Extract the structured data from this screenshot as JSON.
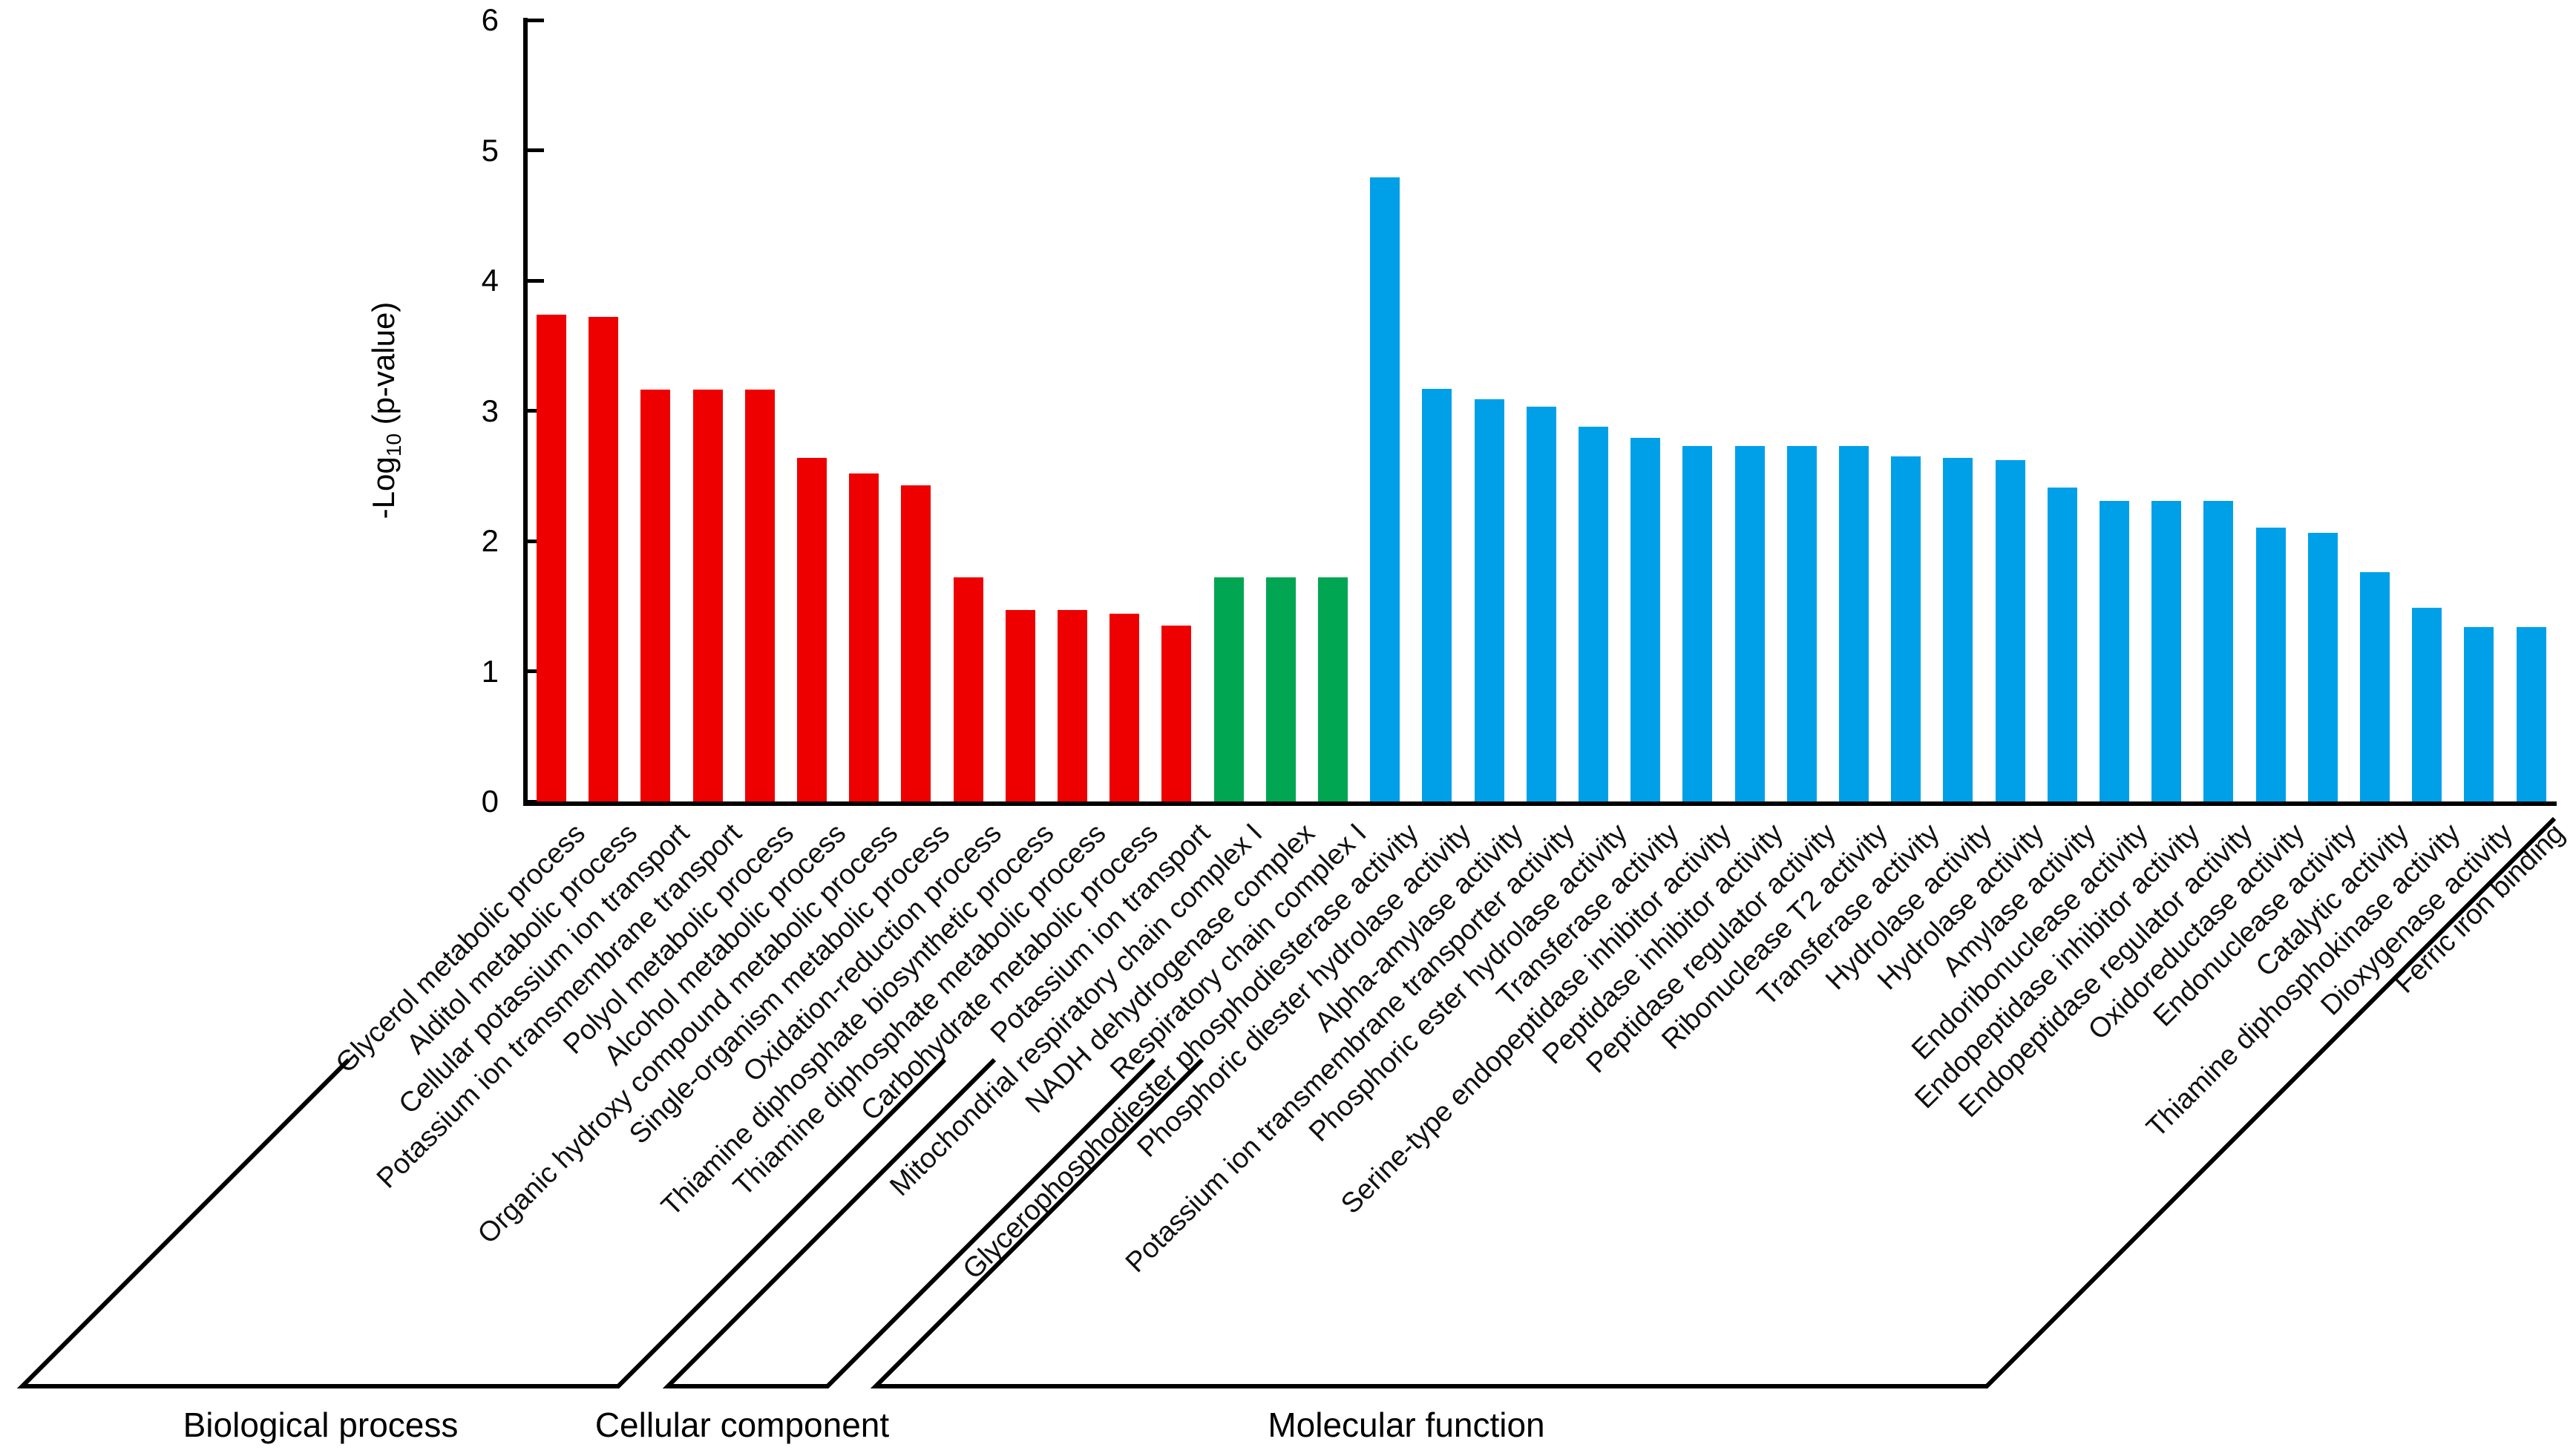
{
  "chart_data": {
    "type": "bar",
    "title": "",
    "ylabel": "-Log10 (p-value)",
    "ylabel_parts": {
      "prefix": "-Log",
      "sub": "10",
      "suffix": " (p-value)"
    },
    "ylim": [
      0,
      6
    ],
    "yticks": [
      "0",
      "1",
      "2",
      "3",
      "4",
      "5",
      "6"
    ],
    "grid": false,
    "legend_position": "none",
    "bar_label_rotation_deg": 45,
    "groups": [
      {
        "name": "Biological process",
        "color": "#ef0000",
        "bars": [
          {
            "label": "Glycerol metabolic process",
            "value": 3.74
          },
          {
            "label": "Alditol metabolic process",
            "value": 3.72
          },
          {
            "label": "Cellular potassium ion transport",
            "value": 3.16
          },
          {
            "label": "Potassium ion transmembrane transport",
            "value": 3.16
          },
          {
            "label": "Polyol metabolic process",
            "value": 3.16
          },
          {
            "label": "Alcohol metabolic process",
            "value": 2.64
          },
          {
            "label": "Organic hydroxy compound metabolic process",
            "value": 2.52
          },
          {
            "label": "Single-organism metabolic process",
            "value": 2.43
          },
          {
            "label": "Oxidation-reduction process",
            "value": 1.72
          },
          {
            "label": "Thiamine diphosphate biosynthetic process",
            "value": 1.47
          },
          {
            "label": "Thiamine diphosphate metabolic process",
            "value": 1.47
          },
          {
            "label": "Carbohydrate metabolic process",
            "value": 1.44
          },
          {
            "label": "Potassium ion transport",
            "value": 1.35
          }
        ]
      },
      {
        "name": "Cellular component",
        "color": "#00a651",
        "bars": [
          {
            "label": "Mitochondrial respiratory chain complex I",
            "value": 1.72
          },
          {
            "label": "NADH dehydrogenase complex",
            "value": 1.72
          },
          {
            "label": "Respiratory chain complex I",
            "value": 1.72
          }
        ]
      },
      {
        "name": "Molecular function",
        "color": "#00a0e9",
        "bars": [
          {
            "label": "Glycerophosphodiester phosphodiesterase activity",
            "value": 4.79
          },
          {
            "label": "Phosphoric diester hydrolase activity",
            "value": 3.17
          },
          {
            "label": "Alpha-amylase activity",
            "value": 3.09
          },
          {
            "label": "Potassium ion transmembrane transporter activity",
            "value": 3.03
          },
          {
            "label": "Phosphoric ester hydrolase activity",
            "value": 2.88
          },
          {
            "label": "Transferase activity",
            "value": 2.79
          },
          {
            "label": "Serine-type endopeptidase inhibitor activity",
            "value": 2.73
          },
          {
            "label": "Peptidase inhibitor activity",
            "value": 2.73
          },
          {
            "label": "Peptidase regulator activity",
            "value": 2.73
          },
          {
            "label": "Ribonuclease T2 activity",
            "value": 2.73
          },
          {
            "label": "Transferase activity",
            "value": 2.65
          },
          {
            "label": "Hydrolase activity",
            "value": 2.64
          },
          {
            "label": "Hydrolase activity",
            "value": 2.62
          },
          {
            "label": "Amylase activity",
            "value": 2.41
          },
          {
            "label": "Endoribonuclease activity",
            "value": 2.31
          },
          {
            "label": "Endopeptidase inhibitor activity",
            "value": 2.31
          },
          {
            "label": "Endopeptidase regulator activity",
            "value": 2.31
          },
          {
            "label": "Oxidoreductase activity",
            "value": 2.1
          },
          {
            "label": "Endonuclease activity",
            "value": 2.06
          },
          {
            "label": "Catalytic activity",
            "value": 1.76
          },
          {
            "label": "Thiamine diphosphokinase activity",
            "value": 1.49
          },
          {
            "label": "Dioxygenase activity",
            "value": 1.34
          },
          {
            "label": "Ferric iron binding",
            "value": 1.34
          }
        ]
      }
    ]
  }
}
